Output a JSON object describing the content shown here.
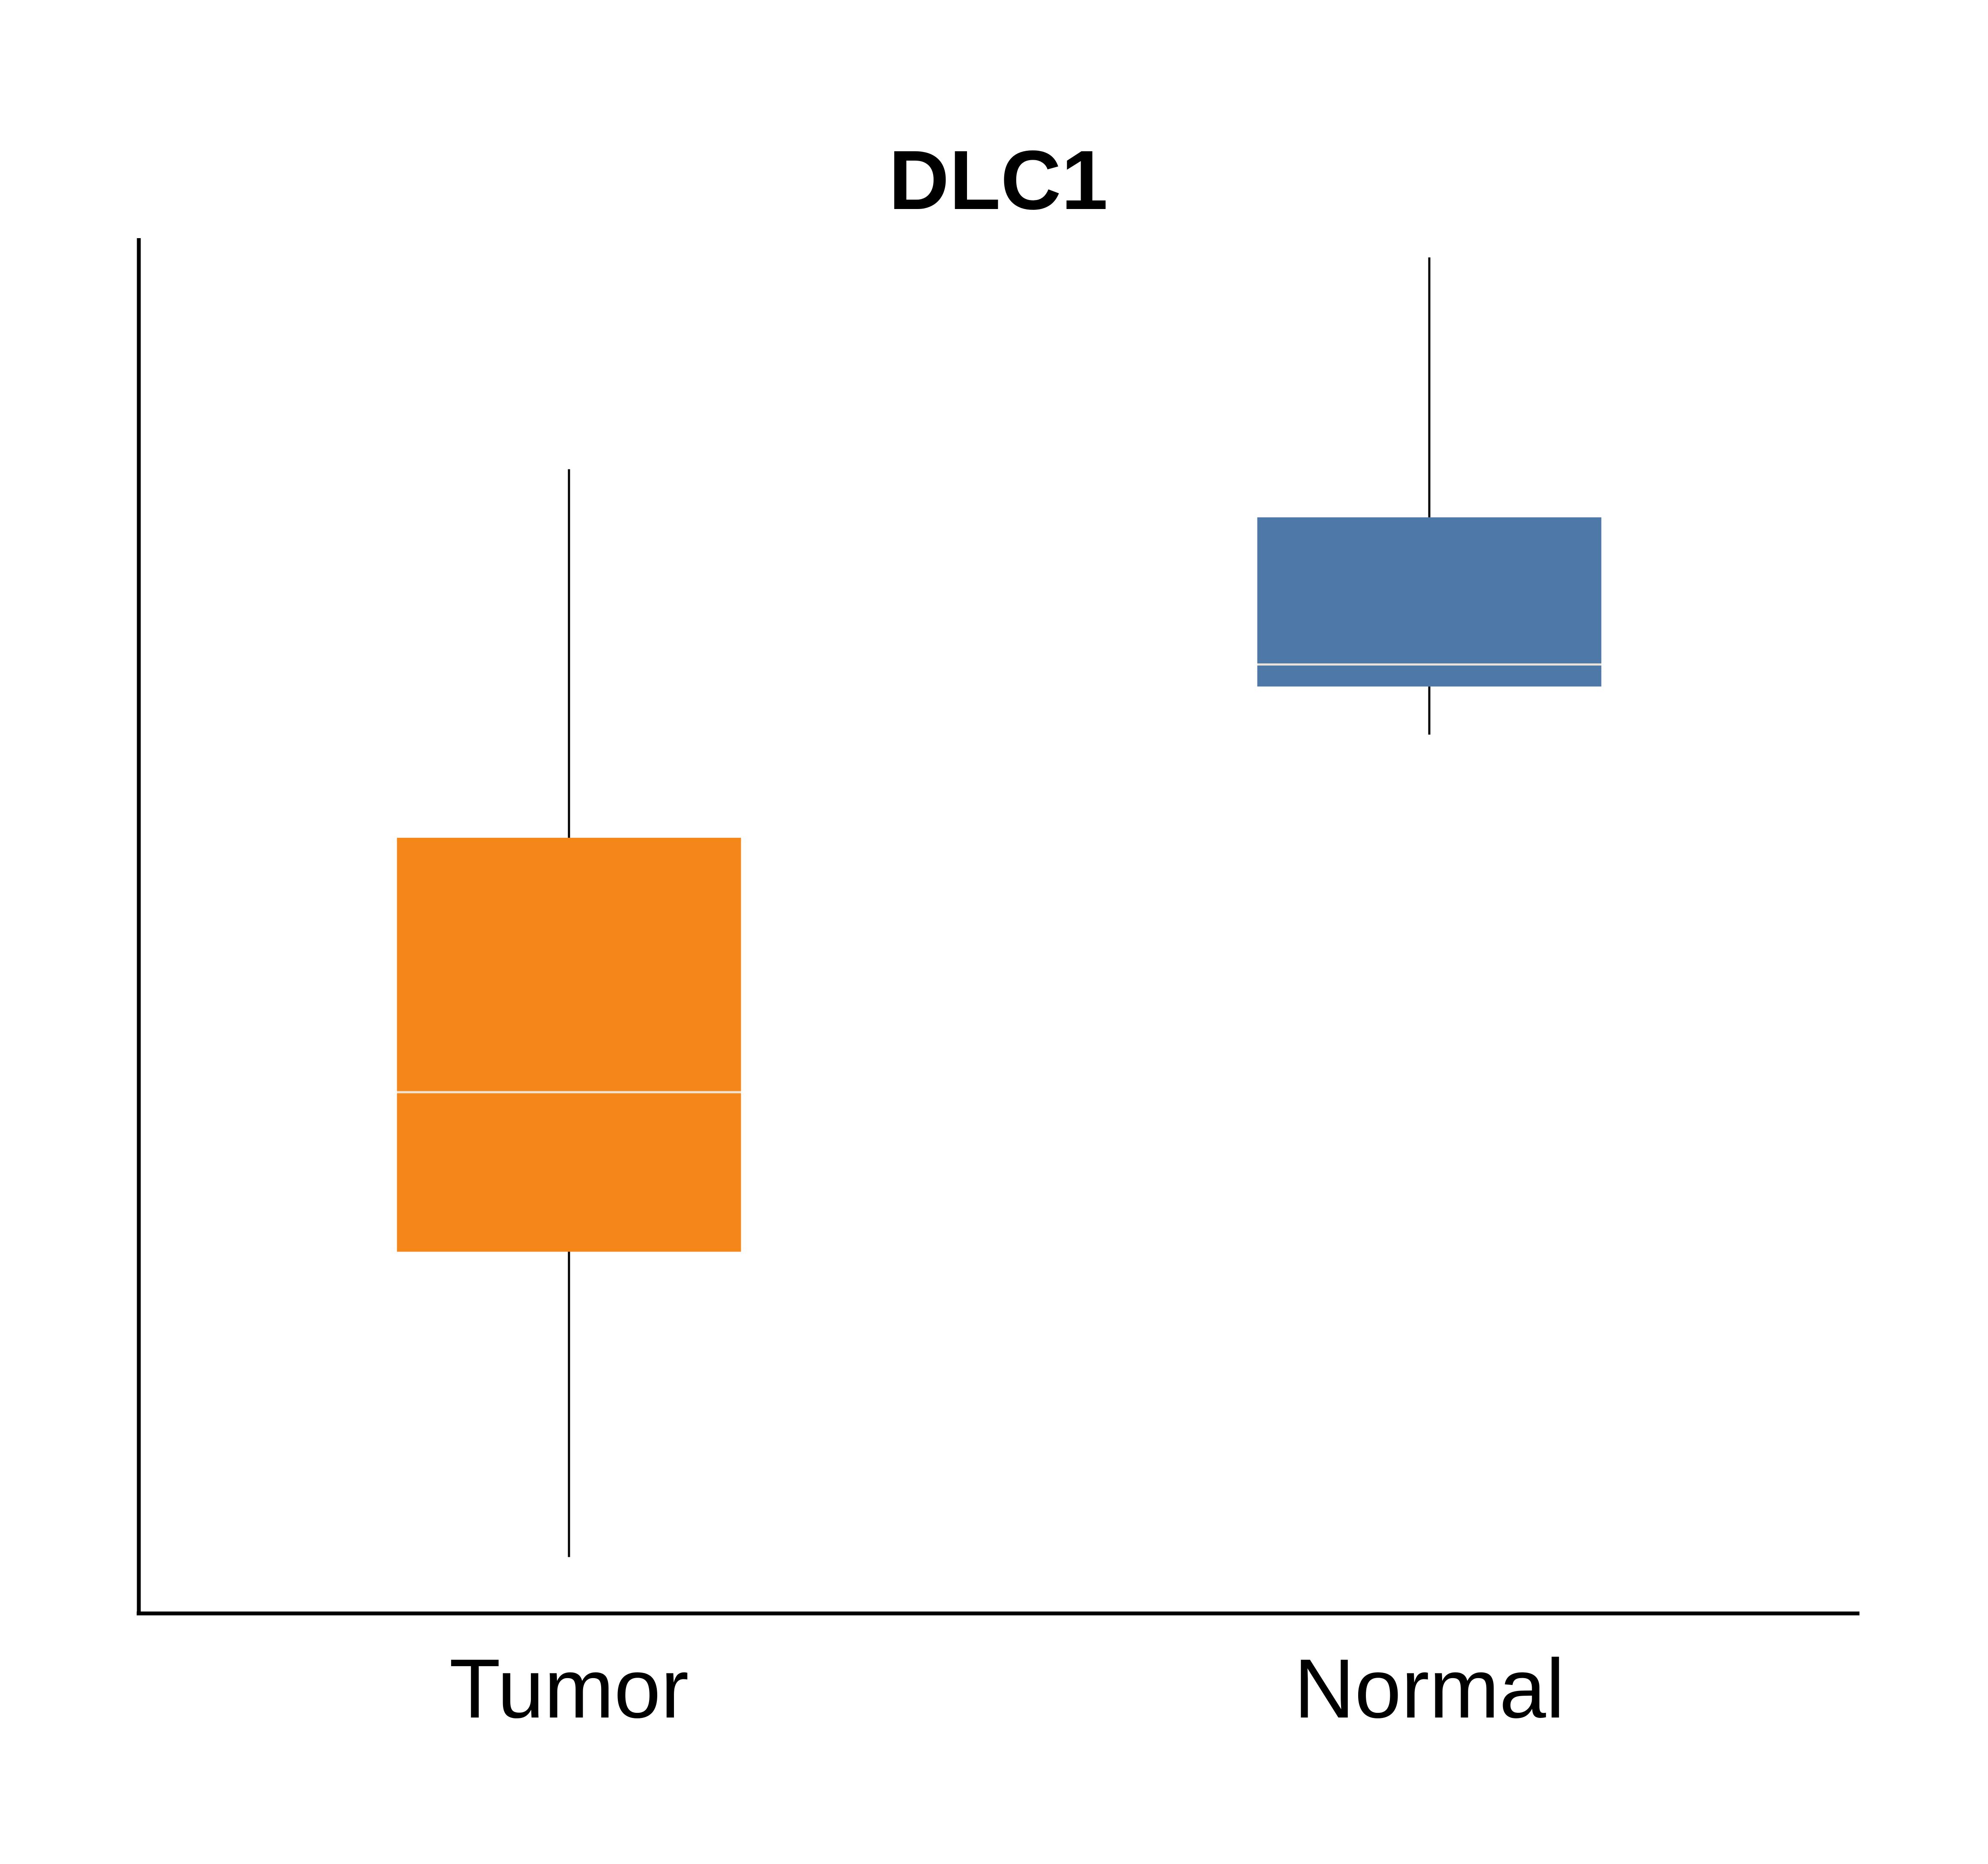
{
  "chart_data": {
    "type": "box",
    "title": "DLC1",
    "xlabel": "",
    "ylabel": "",
    "categories": [
      "Tumor",
      "Normal"
    ],
    "ylim": [
      0,
      100
    ],
    "grid": false,
    "series": [
      {
        "category": "Tumor",
        "color": "#F5871A",
        "whisker_low": 4.1,
        "q1": 26.3,
        "median": 37.9,
        "q3": 56.4,
        "whisker_high": 83.2
      },
      {
        "category": "Normal",
        "color": "#4D78A8",
        "whisker_low": 63.9,
        "q1": 67.4,
        "median": 69.0,
        "q3": 79.7,
        "whisker_high": 98.6
      }
    ],
    "median_line_color": "#EDE3D6"
  }
}
